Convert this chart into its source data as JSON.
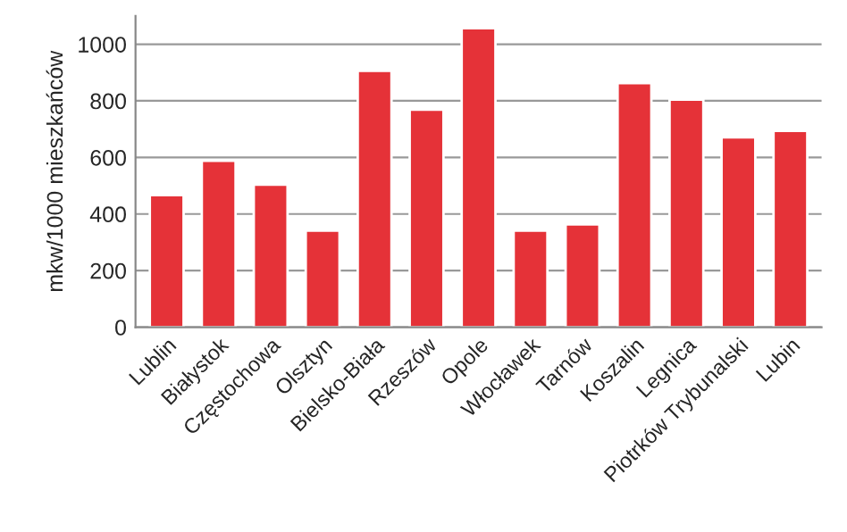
{
  "chart_data": {
    "type": "bar",
    "ylabel": "mkw/1000 mieszkańców",
    "categories": [
      "Lublin",
      "Białystok",
      "Częstochowa",
      "Olsztyn",
      "Bielsko-Biała",
      "Rzeszów",
      "Opole",
      "Włocławek",
      "Tarnów",
      "Koszalin",
      "Legnica",
      "Piotrków Trybunalski",
      "Lubin"
    ],
    "values": [
      467,
      588,
      504,
      341,
      906,
      769,
      1057,
      341,
      363,
      863,
      804,
      671,
      694
    ],
    "color": "#e53238",
    "ylim": [
      0,
      1100
    ],
    "yticks": [
      0,
      200,
      400,
      600,
      800,
      1000
    ],
    "grid": "y"
  }
}
